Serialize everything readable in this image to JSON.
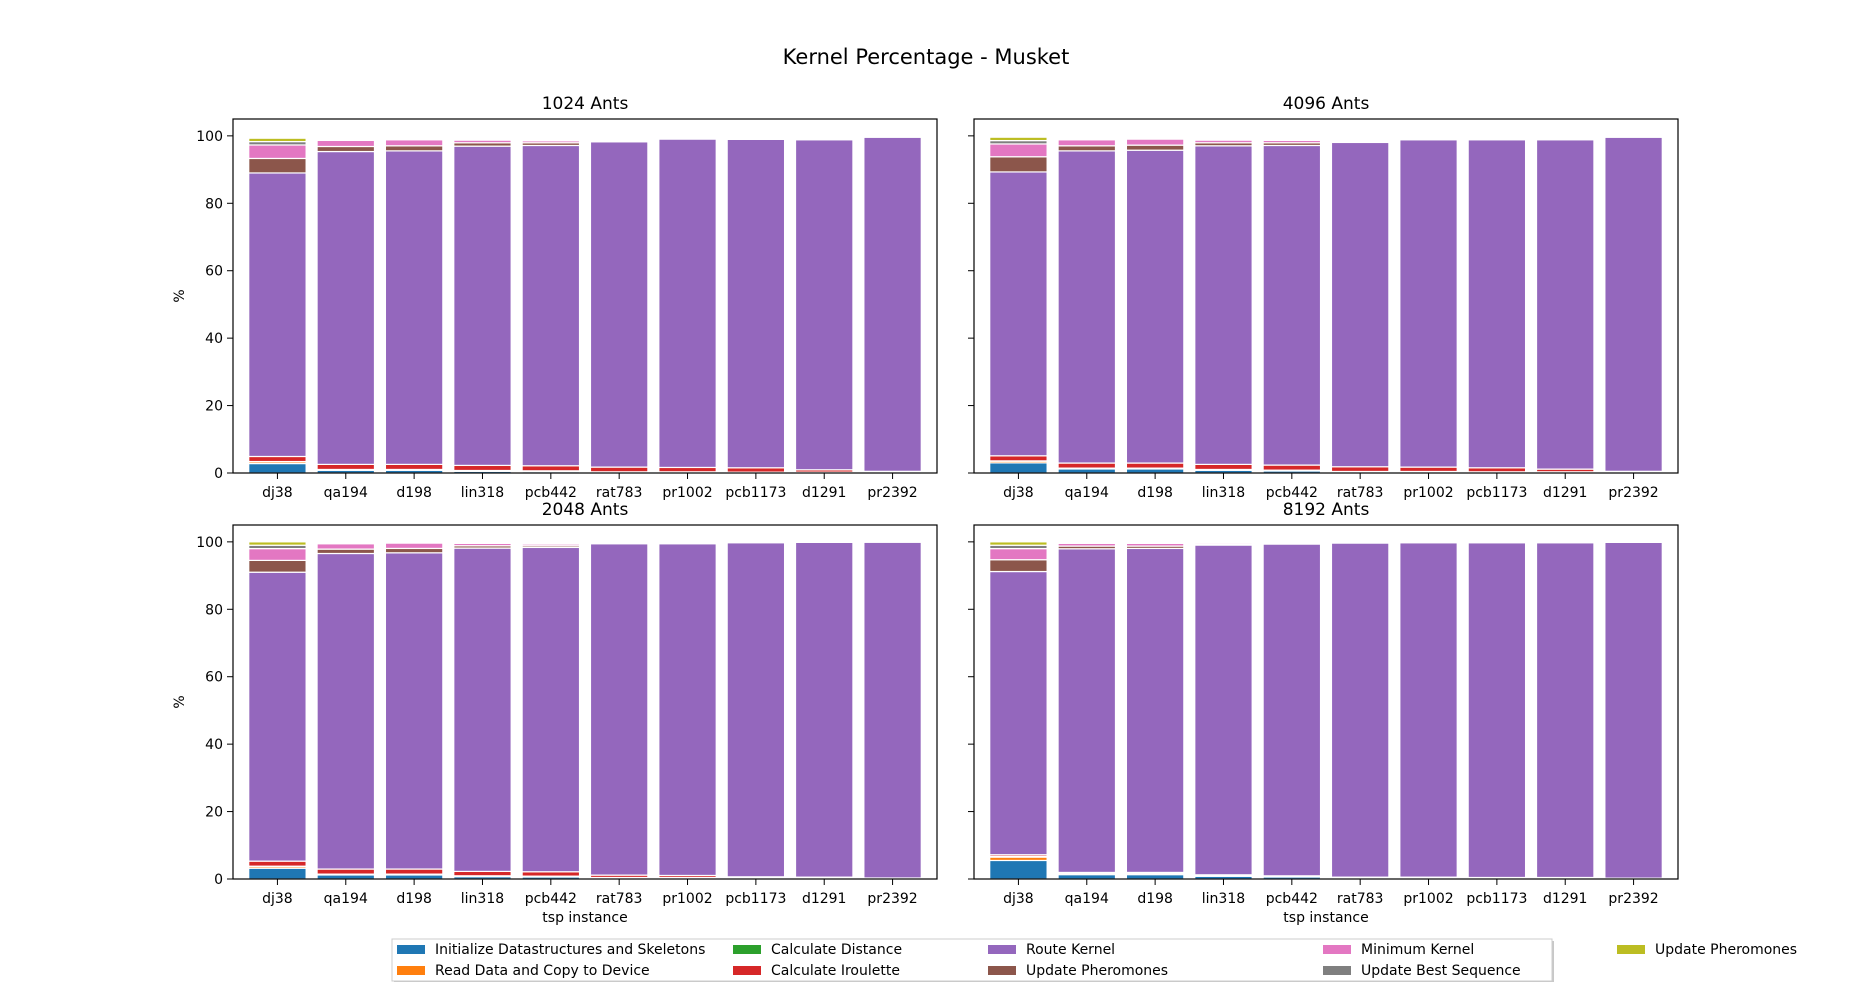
{
  "figure": {
    "title": "Kernel Percentage - Musket"
  },
  "colors": {
    "Initialize Datastructures and Skeletons": "#1f77b4",
    "Read Data and Copy to Device": "#ff7f0e",
    "Calculate Distance": "#2ca02c",
    "Calculate Iroulette": "#d62728",
    "Route Kernel": "#9467bd",
    "Update Pheromones (1)": "#8c564b",
    "Minimum Kernel": "#e377c2",
    "Update Best Sequence": "#7f7f7f",
    "Update Pheromones (2)": "#bcbd22"
  },
  "legend": {
    "placement": "bottom-center",
    "entries": [
      {
        "label": "Initialize Datastructures and Skeletons",
        "color": "#1f77b4"
      },
      {
        "label": "Read Data and Copy to Device",
        "color": "#ff7f0e"
      },
      {
        "label": "Calculate Distance",
        "color": "#2ca02c"
      },
      {
        "label": "Calculate Iroulette",
        "color": "#d62728"
      },
      {
        "label": "Route Kernel",
        "color": "#9467bd"
      },
      {
        "label": "Update Pheromones",
        "color": "#8c564b"
      },
      {
        "label": "Minimum Kernel",
        "color": "#e377c2"
      },
      {
        "label": "Update Best Sequence",
        "color": "#7f7f7f"
      },
      {
        "label": "Update Pheromones",
        "color": "#bcbd22"
      }
    ]
  },
  "chart_data": [
    {
      "type": "bar",
      "stacked": true,
      "title": "1024 Ants",
      "xlabel": "",
      "ylabel": "%",
      "ylim": [
        0,
        105
      ],
      "yticks": [
        0,
        20,
        40,
        60,
        80,
        100
      ],
      "categories": [
        "dj38",
        "qa194",
        "d198",
        "lin318",
        "pcb442",
        "rat783",
        "pr1002",
        "pcb1173",
        "d1291",
        "pr2392"
      ],
      "series": [
        {
          "name": "Initialize Datastructures and Skeletons",
          "values": [
            2.8,
            0.8,
            0.8,
            0.5,
            0.4,
            0.2,
            0.2,
            0.1,
            0.1,
            0.1
          ]
        },
        {
          "name": "Read Data and Copy to Device",
          "values": [
            0.5,
            0.2,
            0.2,
            0.2,
            0.2,
            0.1,
            0.1,
            0.1,
            0.1,
            0.05
          ]
        },
        {
          "name": "Calculate Distance",
          "values": [
            0.1,
            0.05,
            0.05,
            0.05,
            0.05,
            0.05,
            0.05,
            0.05,
            0.05,
            0.05
          ]
        },
        {
          "name": "Calculate Iroulette",
          "values": [
            1.5,
            1.5,
            1.5,
            1.5,
            1.5,
            1.4,
            1.3,
            1.3,
            0.7,
            0.3
          ]
        },
        {
          "name": "Route Kernel",
          "values": [
            84.1,
            92.8,
            93.0,
            94.7,
            95.0,
            96.5,
            97.4,
            97.4,
            97.9,
            99.1
          ]
        },
        {
          "name": "Update Pheromones",
          "values": [
            4.3,
            1.5,
            1.5,
            1.0,
            0.8,
            0.3,
            0.2,
            0.2,
            0.2,
            0.1
          ]
        },
        {
          "name": "Minimum Kernel",
          "values": [
            4.0,
            1.8,
            1.8,
            0.8,
            0.6,
            0.3,
            0.2,
            0.2,
            0.2,
            0.1
          ]
        },
        {
          "name": "Update Best Sequence",
          "values": [
            1.0,
            0.3,
            0.3,
            0.2,
            0.1,
            0.1,
            0.05,
            0.05,
            0.05,
            0.05
          ]
        },
        {
          "name": "Update Pheromones",
          "values": [
            1.0,
            0.2,
            0.2,
            0.1,
            0.1,
            0.1,
            0.05,
            0.05,
            0.05,
            0.05
          ]
        }
      ]
    },
    {
      "type": "bar",
      "stacked": true,
      "title": "4096 Ants",
      "xlabel": "",
      "ylabel": "",
      "ylim": [
        0,
        105
      ],
      "yticks": [
        0,
        20,
        40,
        60,
        80,
        100
      ],
      "categories": [
        "dj38",
        "qa194",
        "d198",
        "lin318",
        "pcb442",
        "rat783",
        "pr1002",
        "pcb1173",
        "d1291",
        "pr2392"
      ],
      "series": [
        {
          "name": "Initialize Datastructures and Skeletons",
          "values": [
            3.0,
            1.2,
            1.2,
            0.8,
            0.6,
            0.3,
            0.3,
            0.2,
            0.2,
            0.1
          ]
        },
        {
          "name": "Read Data and Copy to Device",
          "values": [
            0.5,
            0.2,
            0.2,
            0.2,
            0.2,
            0.1,
            0.1,
            0.1,
            0.1,
            0.05
          ]
        },
        {
          "name": "Calculate Distance",
          "values": [
            0.1,
            0.05,
            0.05,
            0.05,
            0.05,
            0.05,
            0.05,
            0.05,
            0.05,
            0.05
          ]
        },
        {
          "name": "Calculate Iroulette",
          "values": [
            1.5,
            1.5,
            1.5,
            1.5,
            1.5,
            1.4,
            1.3,
            1.2,
            0.8,
            0.3
          ]
        },
        {
          "name": "Route Kernel",
          "values": [
            84.2,
            92.6,
            92.8,
            94.5,
            94.8,
            96.2,
            97.1,
            97.3,
            97.7,
            99.1
          ]
        },
        {
          "name": "Update Pheromones",
          "values": [
            4.5,
            1.5,
            1.5,
            0.9,
            0.8,
            0.3,
            0.2,
            0.2,
            0.2,
            0.1
          ]
        },
        {
          "name": "Minimum Kernel",
          "values": [
            3.8,
            1.8,
            1.8,
            0.8,
            0.7,
            0.3,
            0.2,
            0.2,
            0.2,
            0.1
          ]
        },
        {
          "name": "Update Best Sequence",
          "values": [
            1.0,
            0.3,
            0.3,
            0.2,
            0.1,
            0.1,
            0.05,
            0.05,
            0.05,
            0.05
          ]
        },
        {
          "name": "Update Pheromones",
          "values": [
            1.0,
            0.2,
            0.2,
            0.1,
            0.1,
            0.1,
            0.05,
            0.05,
            0.05,
            0.05
          ]
        }
      ]
    },
    {
      "type": "bar",
      "stacked": true,
      "title": "2048 Ants",
      "xlabel": "tsp instance",
      "ylabel": "%",
      "ylim": [
        0,
        105
      ],
      "yticks": [
        0,
        20,
        40,
        60,
        80,
        100
      ],
      "categories": [
        "dj38",
        "qa194",
        "d198",
        "lin318",
        "pcb442",
        "rat783",
        "pr1002",
        "pcb1173",
        "d1291",
        "pr2392"
      ],
      "series": [
        {
          "name": "Initialize Datastructures and Skeletons",
          "values": [
            3.2,
            1.2,
            1.2,
            0.7,
            0.6,
            0.3,
            0.3,
            0.2,
            0.2,
            0.1
          ]
        },
        {
          "name": "Read Data and Copy to Device",
          "values": [
            0.5,
            0.2,
            0.2,
            0.2,
            0.2,
            0.1,
            0.1,
            0.1,
            0.1,
            0.05
          ]
        },
        {
          "name": "Calculate Distance",
          "values": [
            0.1,
            0.05,
            0.05,
            0.05,
            0.05,
            0.05,
            0.05,
            0.05,
            0.05,
            0.05
          ]
        },
        {
          "name": "Calculate Iroulette",
          "values": [
            1.5,
            1.5,
            1.5,
            1.3,
            1.3,
            0.7,
            0.6,
            0.3,
            0.2,
            0.1
          ]
        },
        {
          "name": "Route Kernel",
          "values": [
            85.7,
            93.6,
            93.8,
            95.9,
            96.2,
            98.3,
            98.4,
            99.1,
            99.3,
            99.6
          ]
        },
        {
          "name": "Update Pheromones",
          "values": [
            3.5,
            1.3,
            1.3,
            0.7,
            0.5,
            0.2,
            0.2,
            0.1,
            0.1,
            0.05
          ]
        },
        {
          "name": "Minimum Kernel",
          "values": [
            3.5,
            1.6,
            1.6,
            0.7,
            0.5,
            0.2,
            0.2,
            0.1,
            0.1,
            0.05
          ]
        },
        {
          "name": "Update Best Sequence",
          "values": [
            1.0,
            0.3,
            0.3,
            0.2,
            0.1,
            0.1,
            0.05,
            0.05,
            0.05,
            0.05
          ]
        },
        {
          "name": "Update Pheromones",
          "values": [
            1.0,
            0.2,
            0.2,
            0.1,
            0.1,
            0.05,
            0.05,
            0.05,
            0.05,
            0.05
          ]
        }
      ]
    },
    {
      "type": "bar",
      "stacked": true,
      "title": "8192 Ants",
      "xlabel": "tsp instance",
      "ylabel": "",
      "ylim": [
        0,
        105
      ],
      "yticks": [
        0,
        20,
        40,
        60,
        80,
        100
      ],
      "categories": [
        "dj38",
        "qa194",
        "d198",
        "lin318",
        "pcb442",
        "rat783",
        "pr1002",
        "pcb1173",
        "d1291",
        "pr2392"
      ],
      "series": [
        {
          "name": "Initialize Datastructures and Skeletons",
          "values": [
            5.5,
            1.3,
            1.3,
            0.8,
            0.6,
            0.3,
            0.3,
            0.2,
            0.2,
            0.1
          ]
        },
        {
          "name": "Read Data and Copy to Device",
          "values": [
            1.0,
            0.4,
            0.4,
            0.2,
            0.2,
            0.1,
            0.1,
            0.1,
            0.1,
            0.05
          ]
        },
        {
          "name": "Calculate Distance",
          "values": [
            0.2,
            0.05,
            0.05,
            0.05,
            0.05,
            0.05,
            0.05,
            0.05,
            0.05,
            0.05
          ]
        },
        {
          "name": "Calculate Iroulette",
          "values": [
            0.5,
            0.2,
            0.2,
            0.2,
            0.1,
            0.1,
            0.1,
            0.1,
            0.1,
            0.05
          ]
        },
        {
          "name": "Route Kernel",
          "values": [
            84.0,
            96.0,
            96.1,
            97.8,
            98.4,
            99.1,
            99.2,
            99.3,
            99.3,
            99.6
          ]
        },
        {
          "name": "Update Pheromones",
          "values": [
            3.5,
            0.8,
            0.7,
            0.3,
            0.2,
            0.1,
            0.05,
            0.05,
            0.05,
            0.05
          ]
        },
        {
          "name": "Minimum Kernel",
          "values": [
            3.3,
            0.8,
            0.8,
            0.4,
            0.2,
            0.1,
            0.05,
            0.05,
            0.05,
            0.05
          ]
        },
        {
          "name": "Update Best Sequence",
          "values": [
            1.0,
            0.3,
            0.3,
            0.2,
            0.1,
            0.1,
            0.05,
            0.05,
            0.05,
            0.05
          ]
        },
        {
          "name": "Update Pheromones",
          "values": [
            1.0,
            0.15,
            0.15,
            0.05,
            0.05,
            0.05,
            0.05,
            0.05,
            0.05,
            0.05
          ]
        }
      ]
    }
  ]
}
